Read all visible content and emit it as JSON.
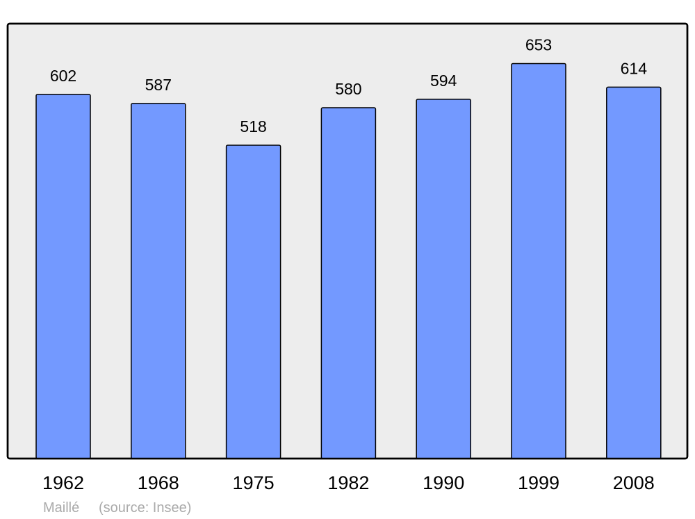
{
  "chart_data": {
    "type": "bar",
    "title": "",
    "xlabel": "",
    "ylabel": "",
    "categories": [
      "1962",
      "1968",
      "1975",
      "1982",
      "1990",
      "1999",
      "2008"
    ],
    "values": [
      602,
      587,
      518,
      580,
      594,
      653,
      614
    ],
    "ylim": [
      0,
      719
    ],
    "grid": false,
    "data_labels": true,
    "colors": {
      "bar": "#7399ff",
      "background": "#ededed",
      "frame": "#000000"
    }
  },
  "footer": {
    "place": "Maillé",
    "source": "(source: Insee)"
  }
}
